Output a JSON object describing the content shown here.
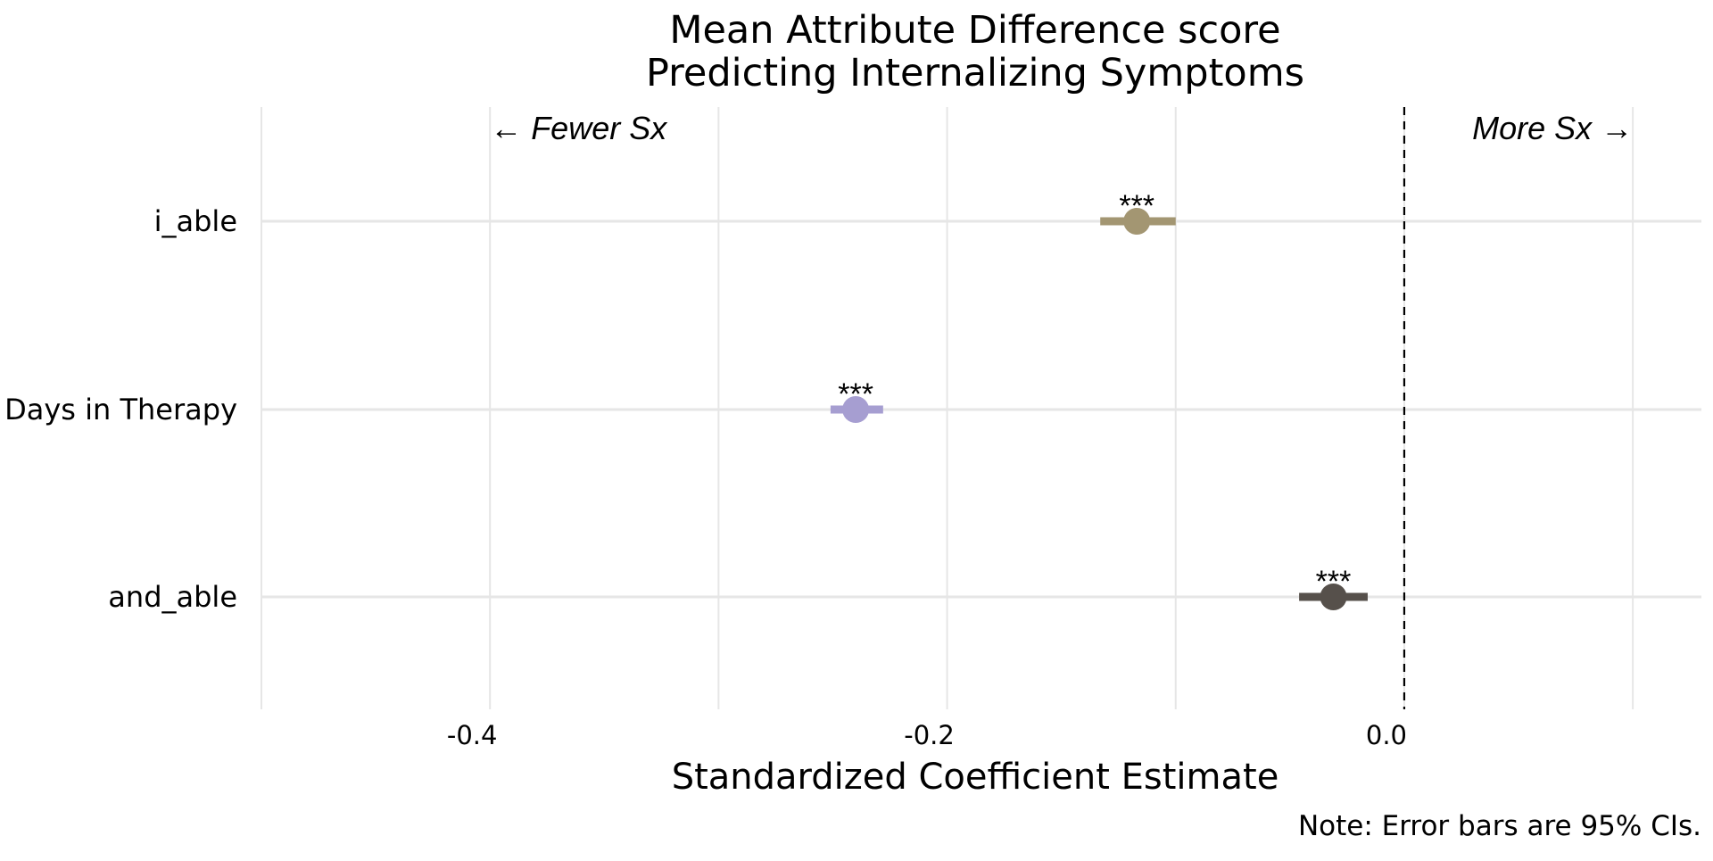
{
  "chart_data": {
    "type": "scatter",
    "title_lines": [
      "Mean Attribute Difference score",
      "Predicting Internalizing Symptoms"
    ],
    "xlabel": "Standardized Coefficient Estimate",
    "ylabel": "",
    "note": "Note: Error bars are 95% CIs.",
    "xlim": [
      -0.5,
      0.13
    ],
    "x_ticks": [
      -0.4,
      -0.2,
      0.0
    ],
    "x_tick_labels": [
      "-0.4",
      "-0.2",
      "0.0"
    ],
    "x_minor_gridlines": [
      -0.5,
      -0.3,
      -0.1,
      0.1
    ],
    "reference_line": 0.0,
    "grid": true,
    "legend": "none",
    "categories": [
      "i_able",
      "Days in Therapy",
      "and_able"
    ],
    "points": [
      {
        "label": "i_able",
        "estimate": -0.117,
        "ci_low": -0.133,
        "ci_high": -0.1,
        "significance": "***",
        "color": "#a39672"
      },
      {
        "label": "Days in Therapy",
        "estimate": -0.24,
        "ci_low": -0.251,
        "ci_high": -0.228,
        "significance": "***",
        "color": "#a69ed1"
      },
      {
        "label": "and_able",
        "estimate": -0.031,
        "ci_low": -0.046,
        "ci_high": -0.016,
        "significance": "***",
        "color": "#56504b"
      }
    ],
    "annotations": [
      {
        "text": "← Fewer Sx",
        "x": -0.4,
        "anchor": "start"
      },
      {
        "text": "More Sx →",
        "x": 0.1,
        "anchor": "end"
      }
    ]
  }
}
